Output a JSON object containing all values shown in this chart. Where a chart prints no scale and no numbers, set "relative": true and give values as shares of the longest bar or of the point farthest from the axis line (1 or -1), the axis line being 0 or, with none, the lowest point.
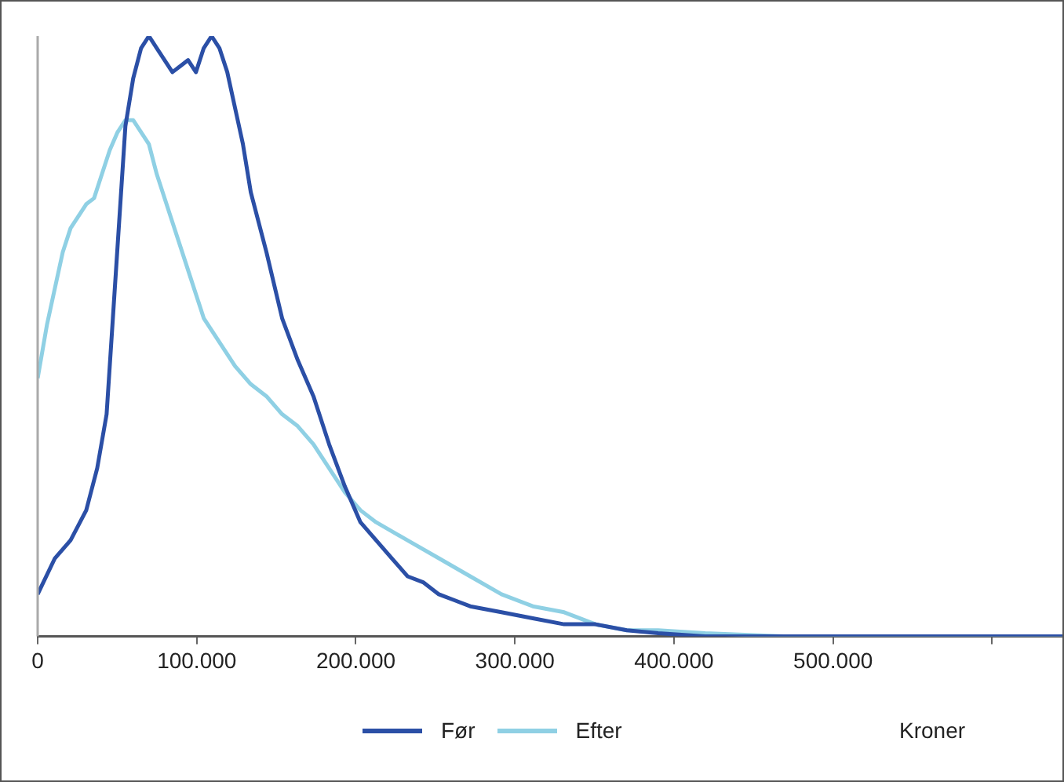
{
  "chart_data": {
    "type": "line",
    "relative": true,
    "xlabel": "Kroner",
    "legend": "bottom",
    "grid": false,
    "marker": "none",
    "line_style": "solid",
    "xlim": [
      0,
      644190
    ],
    "xticks": [
      0,
      {
        "value": 100000,
        "label": "100.000"
      },
      {
        "value": 200000,
        "label": "200.000"
      },
      {
        "value": 300000,
        "label": "300.000"
      },
      {
        "value": 400000,
        "label": "400.000"
      },
      {
        "value": 500000,
        "label": "500.000"
      },
      {
        "value": 600000,
        "label": null
      }
    ],
    "series": [
      {
        "name": "Før",
        "color": "#2b4fa6",
        "x": [
          0,
          10835,
          20685,
          30535,
          37430,
          43340,
          47280,
          51220,
          55160,
          60085,
          65010,
          69935,
          74860,
          79785,
          84710,
          89635,
          94560,
          99485,
          104410,
          109335,
          114260,
          119185,
          124110,
          129035,
          133960,
          143810,
          153660,
          163510,
          173360,
          183210,
          193060,
          202910,
          212760,
          222610,
          232460,
          242310,
          252160,
          262010,
          271860,
          291560,
          311260,
          330960,
          350660,
          370360,
          390060,
          419610,
          468860,
          527960,
          587060,
          644190
        ],
        "values": [
          0.07,
          0.13,
          0.16,
          0.21,
          0.28,
          0.37,
          0.53,
          0.69,
          0.85,
          0.93,
          0.98,
          1,
          0.98,
          0.96,
          0.94,
          0.95,
          0.96,
          0.94,
          0.98,
          1,
          0.98,
          0.94,
          0.88,
          0.82,
          0.74,
          0.64,
          0.53,
          0.46,
          0.4,
          0.32,
          0.25,
          0.19,
          0.16,
          0.13,
          0.1,
          0.09,
          0.07,
          0.06,
          0.05,
          0.04,
          0.03,
          0.02,
          0.02,
          0.01,
          0.005,
          0,
          0,
          0,
          0,
          0
        ]
      },
      {
        "name": "Efter",
        "color": "#8fd0e4",
        "x": [
          0,
          5910,
          10835,
          15760,
          20685,
          25610,
          30535,
          35460,
          40385,
          45310,
          50235,
          55160,
          60085,
          65010,
          69935,
          74860,
          84710,
          94560,
          104410,
          114260,
          124110,
          133960,
          143810,
          153660,
          163510,
          173360,
          183210,
          193060,
          202910,
          212760,
          232460,
          252160,
          271860,
          291560,
          311260,
          330960,
          350660,
          370360,
          390060,
          419610,
          468860,
          567360,
          644190
        ],
        "values": [
          0.43,
          0.52,
          0.58,
          0.64,
          0.68,
          0.7,
          0.72,
          0.73,
          0.77,
          0.81,
          0.84,
          0.86,
          0.86,
          0.84,
          0.82,
          0.77,
          0.69,
          0.61,
          0.53,
          0.49,
          0.45,
          0.42,
          0.4,
          0.37,
          0.35,
          0.32,
          0.28,
          0.24,
          0.21,
          0.19,
          0.16,
          0.13,
          0.1,
          0.07,
          0.05,
          0.04,
          0.02,
          0.01,
          0.01,
          0.005,
          0,
          0,
          0
        ]
      }
    ]
  }
}
